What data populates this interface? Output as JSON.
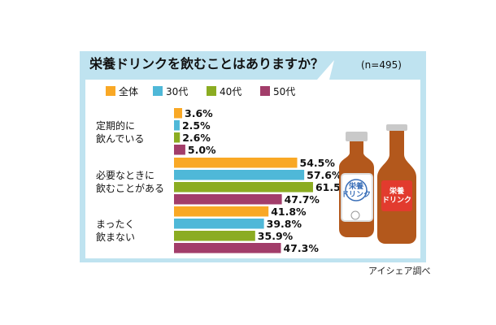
{
  "chart_data": {
    "type": "bar",
    "title": "栄養ドリンクを飲むことはありますか？",
    "subtitle": "(n=495)",
    "unit": "%",
    "xlim": [
      0,
      70
    ],
    "grid": false,
    "legend_position": "top",
    "categories": [
      "定期的に\n飲んでいる",
      "必要なときに\n飲むことがある",
      "まったく\n飲まない"
    ],
    "series": [
      {
        "name": "全体",
        "color": "#f9a825",
        "values": [
          3.6,
          54.5,
          41.8
        ]
      },
      {
        "name": "30代",
        "color": "#4fb8d8",
        "values": [
          2.5,
          57.6,
          39.8
        ]
      },
      {
        "name": "40代",
        "color": "#8bac22",
        "values": [
          2.6,
          61.5,
          35.9
        ]
      },
      {
        "name": "50代",
        "color": "#a23d6a",
        "values": [
          5.0,
          47.7,
          47.3
        ]
      }
    ],
    "source": "アイシェア調べ"
  },
  "illustration": {
    "left_bottle_label": "栄養\nドリンク",
    "right_bottle_label": "栄養\nドリンク"
  },
  "colors": {
    "frame_background": "#bfe3f0",
    "panel_background": "#ffffff",
    "bottle_glass": "#b3581c",
    "bottle_cap": "#c9c9c9",
    "label_border": "#3a6fb8",
    "label_red": "#e23b2e"
  }
}
